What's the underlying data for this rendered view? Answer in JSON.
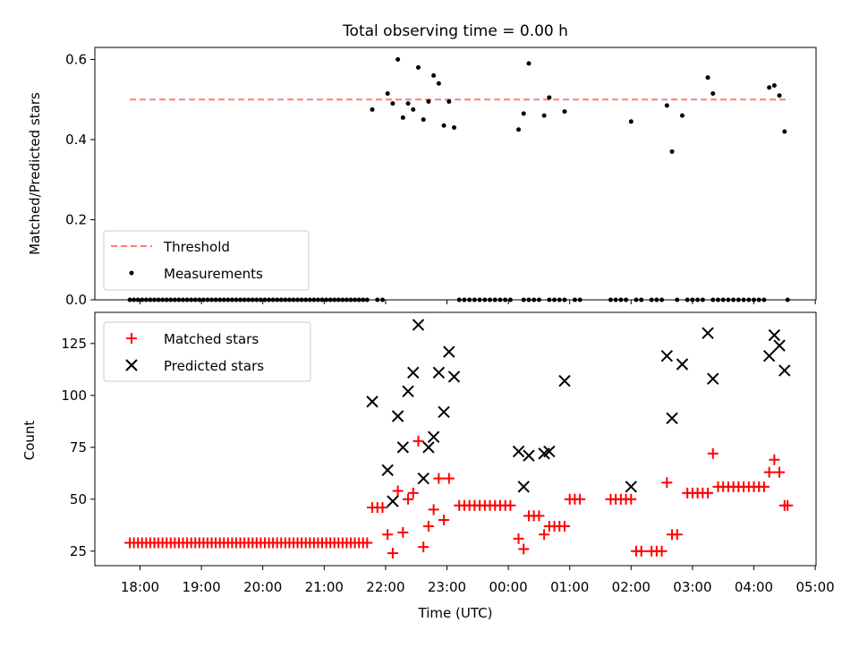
{
  "chart_data": [
    {
      "type": "scatter",
      "title": "Total observing time = 0.00 h",
      "ylabel": "Matched/Predicted stars",
      "xlabel": "",
      "ylim": [
        0,
        0.63
      ],
      "yticks": [
        "0.0",
        "0.2",
        "0.4",
        "0.6"
      ],
      "threshold": {
        "label": "Threshold",
        "value": 0.5,
        "x_range": [
          "17:50",
          "04:35"
        ],
        "color": "#ff7b7b"
      },
      "legend": {
        "placement": "lower-left",
        "entries": [
          "Threshold",
          "Measurements"
        ]
      },
      "series": [
        {
          "name": "Measurements",
          "color": "#000000",
          "zero_points": [
            "17:50",
            "17:54",
            "17:58",
            "18:02",
            "18:06",
            "18:10",
            "18:14",
            "18:18",
            "18:22",
            "18:26",
            "18:30",
            "18:34",
            "18:38",
            "18:42",
            "18:46",
            "18:50",
            "18:54",
            "18:58",
            "19:02",
            "19:06",
            "19:10",
            "19:14",
            "19:18",
            "19:22",
            "19:26",
            "19:30",
            "19:34",
            "19:38",
            "19:42",
            "19:46",
            "19:50",
            "19:54",
            "19:58",
            "20:02",
            "20:06",
            "20:10",
            "20:14",
            "20:18",
            "20:22",
            "20:26",
            "20:30",
            "20:34",
            "20:38",
            "20:42",
            "20:46",
            "20:50",
            "20:54",
            "20:58",
            "21:02",
            "21:06",
            "21:10",
            "21:14",
            "21:18",
            "21:22",
            "21:26",
            "21:30",
            "21:34",
            "21:38",
            "21:42",
            "21:52",
            "21:57",
            "23:12",
            "23:17",
            "23:22",
            "23:27",
            "23:32",
            "23:37",
            "23:42",
            "23:47",
            "23:52",
            "23:57",
            "00:02",
            "00:15",
            "00:20",
            "00:25",
            "00:30",
            "00:40",
            "00:45",
            "00:50",
            "00:55",
            "01:05",
            "01:10",
            "01:40",
            "01:45",
            "01:50",
            "01:55",
            "02:05",
            "02:10",
            "02:20",
            "02:25",
            "02:30",
            "02:45",
            "02:55",
            "03:00",
            "03:05",
            "03:10",
            "03:20",
            "03:25",
            "03:30",
            "03:35",
            "03:40",
            "03:45",
            "03:50",
            "03:55",
            "04:00",
            "04:05",
            "04:10",
            "04:33"
          ],
          "points": [
            {
              "x": "21:47",
              "y": 0.475
            },
            {
              "x": "22:02",
              "y": 0.515
            },
            {
              "x": "22:07",
              "y": 0.49
            },
            {
              "x": "22:12",
              "y": 0.6
            },
            {
              "x": "22:17",
              "y": 0.455
            },
            {
              "x": "22:22",
              "y": 0.49
            },
            {
              "x": "22:27",
              "y": 0.475
            },
            {
              "x": "22:32",
              "y": 0.58
            },
            {
              "x": "22:37",
              "y": 0.45
            },
            {
              "x": "22:42",
              "y": 0.495
            },
            {
              "x": "22:47",
              "y": 0.56
            },
            {
              "x": "22:52",
              "y": 0.54
            },
            {
              "x": "22:57",
              "y": 0.435
            },
            {
              "x": "23:02",
              "y": 0.495
            },
            {
              "x": "23:07",
              "y": 0.43
            },
            {
              "x": "00:10",
              "y": 0.425
            },
            {
              "x": "00:15",
              "y": 0.465
            },
            {
              "x": "00:20",
              "y": 0.59
            },
            {
              "x": "00:35",
              "y": 0.46
            },
            {
              "x": "00:40",
              "y": 0.505
            },
            {
              "x": "00:55",
              "y": 0.47
            },
            {
              "x": "02:00",
              "y": 0.445
            },
            {
              "x": "02:35",
              "y": 0.485
            },
            {
              "x": "02:40",
              "y": 0.37
            },
            {
              "x": "02:50",
              "y": 0.46
            },
            {
              "x": "03:15",
              "y": 0.555
            },
            {
              "x": "03:20",
              "y": 0.515
            },
            {
              "x": "04:15",
              "y": 0.53
            },
            {
              "x": "04:20",
              "y": 0.535
            },
            {
              "x": "04:25",
              "y": 0.51
            },
            {
              "x": "04:30",
              "y": 0.42
            }
          ]
        }
      ]
    },
    {
      "type": "scatter",
      "title": "",
      "xlabel": "Time (UTC)",
      "ylabel": "Count",
      "ylim": [
        18,
        140
      ],
      "yticks": [
        "25",
        "50",
        "75",
        "100",
        "125"
      ],
      "xticks": [
        "18:00",
        "19:00",
        "20:00",
        "21:00",
        "22:00",
        "23:00",
        "00:00",
        "01:00",
        "02:00",
        "03:00",
        "04:00",
        "05:00"
      ],
      "legend": {
        "placement": "upper-left",
        "entries": [
          "Matched stars",
          "Predicted stars"
        ]
      },
      "series": [
        {
          "name": "Matched stars",
          "marker": "+",
          "color": "#ff0000",
          "constant_runs": [
            {
              "y": 29,
              "x": [
                "17:50",
                "17:54",
                "17:58",
                "18:02",
                "18:06",
                "18:10",
                "18:14",
                "18:18",
                "18:22",
                "18:26",
                "18:30",
                "18:34",
                "18:38",
                "18:42",
                "18:46",
                "18:50",
                "18:54",
                "18:58",
                "19:02",
                "19:06",
                "19:10",
                "19:14",
                "19:18",
                "19:22",
                "19:26",
                "19:30",
                "19:34",
                "19:38",
                "19:42",
                "19:46",
                "19:50",
                "19:54",
                "19:58",
                "20:02",
                "20:06",
                "20:10",
                "20:14",
                "20:18",
                "20:22",
                "20:26",
                "20:30",
                "20:34",
                "20:38",
                "20:42",
                "20:46",
                "20:50",
                "20:54",
                "20:58",
                "21:02",
                "21:06",
                "21:10",
                "21:14",
                "21:18",
                "21:22",
                "21:26",
                "21:30",
                "21:34",
                "21:38",
                "21:42"
              ]
            },
            {
              "y": 46,
              "x": [
                "21:47",
                "21:52",
                "21:57"
              ]
            },
            {
              "y": 47,
              "x": [
                "23:12",
                "23:17",
                "23:22",
                "23:27",
                "23:32",
                "23:37",
                "23:42",
                "23:47",
                "23:52",
                "23:57",
                "00:02"
              ]
            },
            {
              "y": 42,
              "x": [
                "00:20",
                "00:25",
                "00:30"
              ]
            },
            {
              "y": 37,
              "x": [
                "00:40",
                "00:45",
                "00:50",
                "00:55"
              ]
            },
            {
              "y": 50,
              "x": [
                "01:00",
                "01:05",
                "01:10",
                "01:40",
                "01:45",
                "01:50",
                "01:55",
                "02:00"
              ]
            },
            {
              "y": 25,
              "x": [
                "02:05",
                "02:10",
                "02:20",
                "02:25",
                "02:30"
              ]
            },
            {
              "y": 53,
              "x": [
                "02:55",
                "03:00",
                "03:05",
                "03:10",
                "03:15"
              ]
            },
            {
              "y": 56,
              "x": [
                "03:25",
                "03:30",
                "03:35",
                "03:40",
                "03:45",
                "03:50",
                "03:55",
                "04:00",
                "04:05",
                "04:10"
              ]
            }
          ],
          "points": [
            {
              "x": "22:02",
              "y": 33
            },
            {
              "x": "22:07",
              "y": 24
            },
            {
              "x": "22:12",
              "y": 54
            },
            {
              "x": "22:17",
              "y": 34
            },
            {
              "x": "22:22",
              "y": 50
            },
            {
              "x": "22:27",
              "y": 53
            },
            {
              "x": "22:32",
              "y": 78
            },
            {
              "x": "22:37",
              "y": 27
            },
            {
              "x": "22:42",
              "y": 37
            },
            {
              "x": "22:47",
              "y": 45
            },
            {
              "x": "22:52",
              "y": 60
            },
            {
              "x": "22:57",
              "y": 40
            },
            {
              "x": "23:02",
              "y": 60
            },
            {
              "x": "00:10",
              "y": 31
            },
            {
              "x": "00:15",
              "y": 26
            },
            {
              "x": "00:35",
              "y": 33
            },
            {
              "x": "02:35",
              "y": 58
            },
            {
              "x": "02:40",
              "y": 33
            },
            {
              "x": "02:45",
              "y": 33
            },
            {
              "x": "03:20",
              "y": 72
            },
            {
              "x": "04:15",
              "y": 63
            },
            {
              "x": "04:20",
              "y": 69
            },
            {
              "x": "04:25",
              "y": 63
            },
            {
              "x": "04:30",
              "y": 47
            },
            {
              "x": "04:33",
              "y": 47
            }
          ]
        },
        {
          "name": "Predicted stars",
          "marker": "x",
          "color": "#000000",
          "points": [
            {
              "x": "21:47",
              "y": 97
            },
            {
              "x": "22:02",
              "y": 64
            },
            {
              "x": "22:07",
              "y": 49
            },
            {
              "x": "22:12",
              "y": 90
            },
            {
              "x": "22:17",
              "y": 75
            },
            {
              "x": "22:22",
              "y": 102
            },
            {
              "x": "22:27",
              "y": 111
            },
            {
              "x": "22:32",
              "y": 134
            },
            {
              "x": "22:37",
              "y": 60
            },
            {
              "x": "22:42",
              "y": 75
            },
            {
              "x": "22:47",
              "y": 80
            },
            {
              "x": "22:52",
              "y": 111
            },
            {
              "x": "22:57",
              "y": 92
            },
            {
              "x": "23:02",
              "y": 121
            },
            {
              "x": "23:07",
              "y": 109
            },
            {
              "x": "00:10",
              "y": 73
            },
            {
              "x": "00:15",
              "y": 56
            },
            {
              "x": "00:20",
              "y": 71
            },
            {
              "x": "00:35",
              "y": 72
            },
            {
              "x": "00:40",
              "y": 73
            },
            {
              "x": "00:55",
              "y": 107
            },
            {
              "x": "02:00",
              "y": 56
            },
            {
              "x": "02:35",
              "y": 119
            },
            {
              "x": "02:40",
              "y": 89
            },
            {
              "x": "02:50",
              "y": 115
            },
            {
              "x": "03:15",
              "y": 130
            },
            {
              "x": "03:20",
              "y": 108
            },
            {
              "x": "04:15",
              "y": 119
            },
            {
              "x": "04:20",
              "y": 129
            },
            {
              "x": "04:25",
              "y": 124
            },
            {
              "x": "04:30",
              "y": 112
            }
          ]
        }
      ]
    }
  ]
}
